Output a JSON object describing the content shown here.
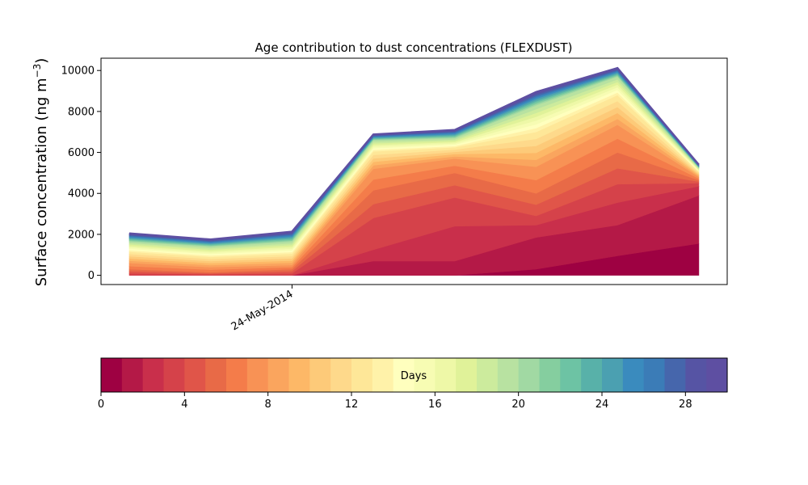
{
  "chart_data": [
    {
      "type": "area",
      "subtype": "stacked",
      "title": "Age contribution to dust concentrations (FLEXDUST)",
      "ylabel": "Surface concentration (ng m",
      "ylabel_superscript": "−3",
      "ylabel_suffix": ")",
      "xlabel": "",
      "x_tick_labels": [
        "24-May-2014"
      ],
      "x_tick_index": 2,
      "num_x_points": 8,
      "ylim": [
        -450,
        10600
      ],
      "yticks": [
        0,
        2000,
        4000,
        6000,
        8000,
        10000
      ],
      "totals": [
        2050,
        1750,
        2130,
        6880,
        7100,
        8950,
        10120,
        5400
      ],
      "cumulative_anchors": {
        "1": [
          0,
          0,
          0,
          0,
          0,
          300,
          950,
          1550
        ],
        "2": [
          0,
          0,
          0,
          700,
          700,
          1850,
          2450,
          3900
        ],
        "3": [
          0,
          0,
          0,
          1250,
          2400,
          2450,
          3550,
          4350
        ],
        "4": [
          100,
          50,
          100,
          2800,
          3800,
          2900,
          4450,
          4500
        ],
        "6": [
          300,
          150,
          300,
          4150,
          5000,
          4000,
          6000,
          4650
        ],
        "8": [
          600,
          400,
          500,
          5200,
          5700,
          5300,
          7350,
          4800
        ],
        "13": [
          1150,
          900,
          1050,
          6050,
          6250,
          7000,
          8800,
          5050
        ],
        "20": [
          1650,
          1400,
          1650,
          6600,
          6700,
          8300,
          9700,
          5250
        ],
        "30": [
          2050,
          1750,
          2130,
          6880,
          7100,
          8950,
          10120,
          5400
        ]
      },
      "color_scale": "Spectral",
      "colors": [
        "#9e0142",
        "#b41947",
        "#c92f4b",
        "#d5424a",
        "#e05549",
        "#e86a47",
        "#f47c4a",
        "#f89255",
        "#faa55e",
        "#fdb867",
        "#fdca79",
        "#fed98b",
        "#fee798",
        "#fff2a9",
        "#ffffbe",
        "#f7fcb3",
        "#eef8a7",
        "#e0f299",
        "#cceb9d",
        "#b8e2a1",
        "#a1d9a3",
        "#85ce9f",
        "#6dc3a4",
        "#58b1a9",
        "#4ba0b1",
        "#3a8bbe",
        "#3b7cb7",
        "#4666ac",
        "#5654a4",
        "#5e4fa2"
      ],
      "colorbar": {
        "label": "Days",
        "min": 0,
        "max": 30,
        "ticks": [
          0,
          4,
          8,
          12,
          16,
          20,
          24,
          28
        ],
        "bins": 30
      },
      "grid": false
    }
  ]
}
